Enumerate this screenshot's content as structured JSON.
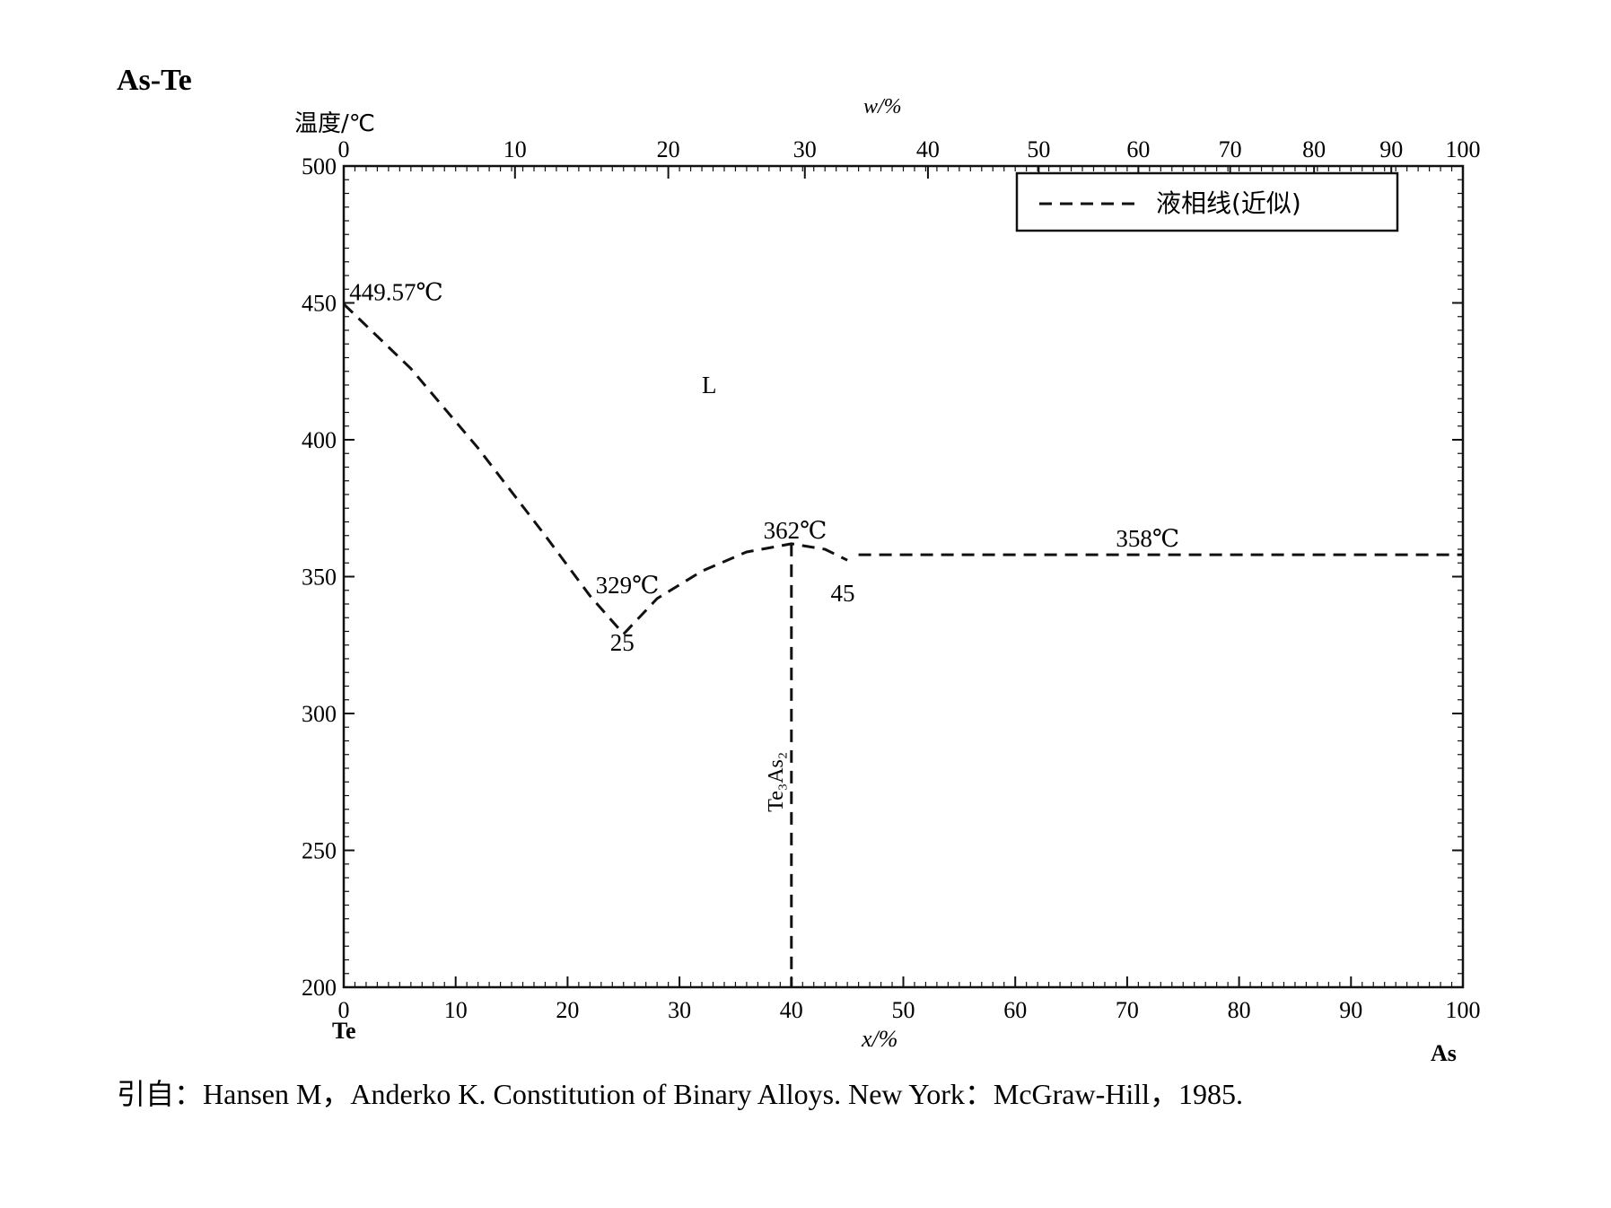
{
  "chart_data": {
    "type": "line",
    "title": "As-Te",
    "ylabel": "温度/℃",
    "xlabel_bottom": "x/%",
    "xlabel_top": "w/%",
    "left_element": "Te",
    "right_element": "As",
    "ylim": [
      200,
      500
    ],
    "xlim": [
      0,
      100
    ],
    "y_ticks": [
      200,
      250,
      300,
      350,
      400,
      450,
      500
    ],
    "x_ticks_bottom": [
      0,
      10,
      20,
      30,
      40,
      50,
      60,
      70,
      80,
      90,
      100
    ],
    "x_ticks_top": [
      {
        "label": "0",
        "x": 0
      },
      {
        "label": "10",
        "x": 15.3
      },
      {
        "label": "20",
        "x": 29.0
      },
      {
        "label": "30",
        "x": 41.2
      },
      {
        "label": "40",
        "x": 52.2
      },
      {
        "label": "50",
        "x": 62.1
      },
      {
        "label": "60",
        "x": 71.0
      },
      {
        "label": "70",
        "x": 79.2
      },
      {
        "label": "80",
        "x": 86.7
      },
      {
        "label": "90",
        "x": 93.6
      },
      {
        "label": "100",
        "x": 100
      }
    ],
    "legend": {
      "label": "液相线(近似)",
      "placement": "top-right"
    },
    "series": [
      {
        "style": "dashed",
        "x": [
          0,
          6,
          12,
          18,
          22,
          25
        ],
        "y": [
          449.57,
          426,
          397,
          365,
          343,
          329
        ]
      },
      {
        "style": "dashed",
        "x": [
          25,
          28,
          32,
          36,
          40,
          43,
          45
        ],
        "y": [
          329,
          342,
          352,
          359,
          362,
          360,
          356
        ]
      },
      {
        "style": "dashed",
        "x": [
          46,
          70,
          100
        ],
        "y": [
          358,
          358,
          358
        ]
      },
      {
        "style": "dashed",
        "x": [
          40,
          40
        ],
        "y": [
          362,
          200
        ]
      }
    ],
    "annotations": [
      {
        "text": "449.57℃",
        "x": 0.5,
        "y": 451
      },
      {
        "text": "L",
        "x": 32,
        "y": 417
      },
      {
        "text": "362℃",
        "x": 37.5,
        "y": 364
      },
      {
        "text": "358℃",
        "x": 69,
        "y": 361
      },
      {
        "text": "329℃",
        "x": 22.5,
        "y": 344
      },
      {
        "text": "25",
        "x": 23.8,
        "y": 323
      },
      {
        "text": "45",
        "x": 43.5,
        "y": 341
      }
    ],
    "phase_label": {
      "text": "Te₃As₂",
      "x": 40,
      "y": 275
    }
  },
  "citation": "引自：Hansen M，Anderko K. Constitution of Binary Alloys. New York：McGraw-Hill，1985."
}
